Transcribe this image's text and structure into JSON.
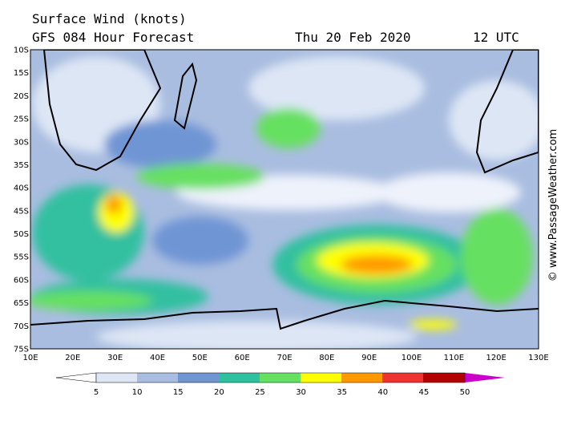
{
  "header": {
    "title": "Surface Wind (knots)",
    "model": "GFS 084 Hour Forecast",
    "date": "Thu 20 Feb 2020",
    "time": "12 UTC"
  },
  "latitudes": [
    "10S",
    "15S",
    "20S",
    "25S",
    "30S",
    "35S",
    "40S",
    "45S",
    "50S",
    "55S",
    "60S",
    "65S",
    "70S",
    "75S"
  ],
  "longitudes": [
    "10E",
    "20E",
    "30E",
    "40E",
    "50E",
    "60E",
    "70E",
    "80E",
    "90E",
    "100E",
    "110E",
    "120E",
    "130E"
  ],
  "colorbar": {
    "labels": [
      5,
      10,
      15,
      20,
      25,
      30,
      35,
      40,
      45,
      50
    ]
  },
  "credit": "© www.PassageWeather.com"
}
